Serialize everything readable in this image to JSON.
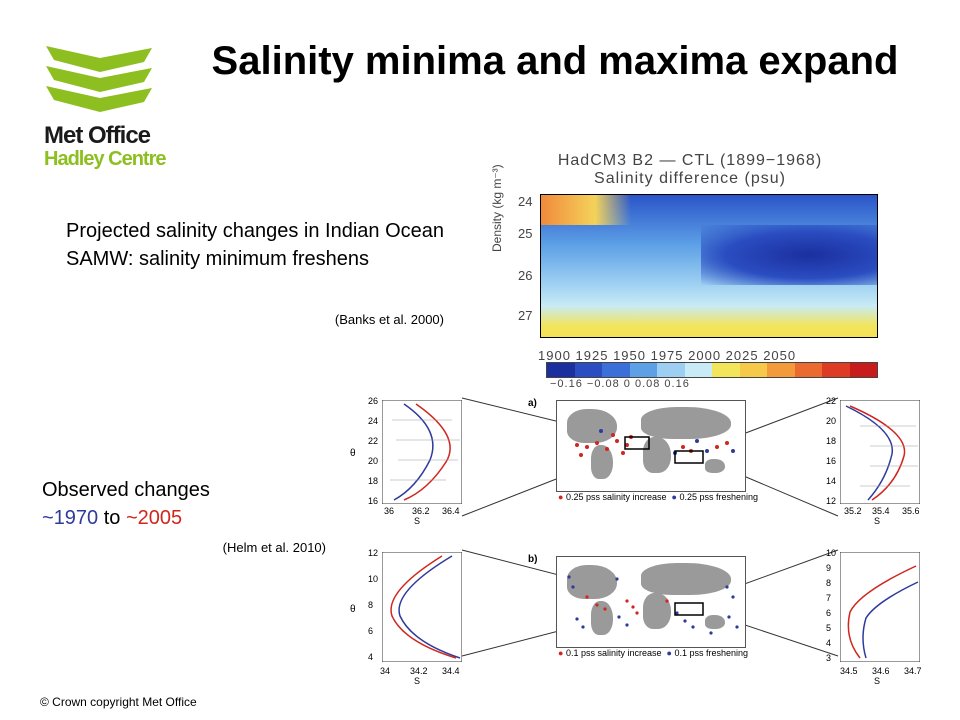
{
  "logo": {
    "brand": "Met Office",
    "sub": "Hadley Centre",
    "accent": "#8cbf1f"
  },
  "title": "Salinity minima and maxima expand",
  "projected": {
    "text": "Projected salinity changes in Indian Ocean SAMW: salinity minimum freshens",
    "citation": "(Banks et al. 2000)"
  },
  "observed": {
    "line1": "Observed changes",
    "tilde1": "~",
    "year_start": "1970",
    "mid": " to ",
    "tilde2": "~",
    "year_end": "2005",
    "citation": "(Helm et al. 2010)",
    "blue": "#2f3a9e",
    "red": "#d0261e"
  },
  "hadcm3": {
    "title": "HadCM3 B2 — CTL (1899−1968)",
    "subtitle": "Salinity difference (psu)",
    "ylabel": "Density (kg m⁻³)",
    "yticks": [
      "24",
      "25",
      "26",
      "27"
    ],
    "xticks": "1900 1925 1950 1975 2000 2025 2050",
    "cbar_ticks": "−0.16 −0.08   0   0.08  0.16",
    "cbar_colors": [
      "#1b2f9f",
      "#2a4dc1",
      "#3c6fd8",
      "#5da0e6",
      "#9ccff2",
      "#c9ebf5",
      "#f2e55c",
      "#f7c94a",
      "#f39a3c",
      "#ea6a2f",
      "#de3b24",
      "#c81c1c"
    ]
  },
  "map_a": {
    "label": "a)",
    "legend_red": "0.25 pss salinity increase",
    "legend_blue": "0.25 pss freshening"
  },
  "map_b": {
    "label": "b)",
    "legend_red": "0.1 pss salinity increase",
    "legend_blue": "0.1 pss freshening"
  },
  "profile_axes": {
    "theta": "θ",
    "s": "S"
  },
  "profile_a_left": {
    "yticks": [
      "26",
      "24",
      "22",
      "20",
      "18",
      "16"
    ],
    "xticks": [
      "36",
      "36.2",
      "36.4"
    ]
  },
  "profile_a_right": {
    "yticks": [
      "22",
      "20",
      "18",
      "16",
      "14",
      "12"
    ],
    "xticks": [
      "35.2",
      "35.4",
      "35.6"
    ]
  },
  "profile_b_left": {
    "yticks": [
      "12",
      "10",
      "8",
      "6",
      "4"
    ],
    "xticks": [
      "34",
      "34.2",
      "34.4"
    ]
  },
  "profile_b_right": {
    "yticks": [
      "10",
      "9",
      "8",
      "7",
      "6",
      "5",
      "4",
      "3"
    ],
    "xticks": [
      "34.5",
      "34.6",
      "34.7"
    ]
  },
  "copyright": "© Crown copyright   Met Office"
}
